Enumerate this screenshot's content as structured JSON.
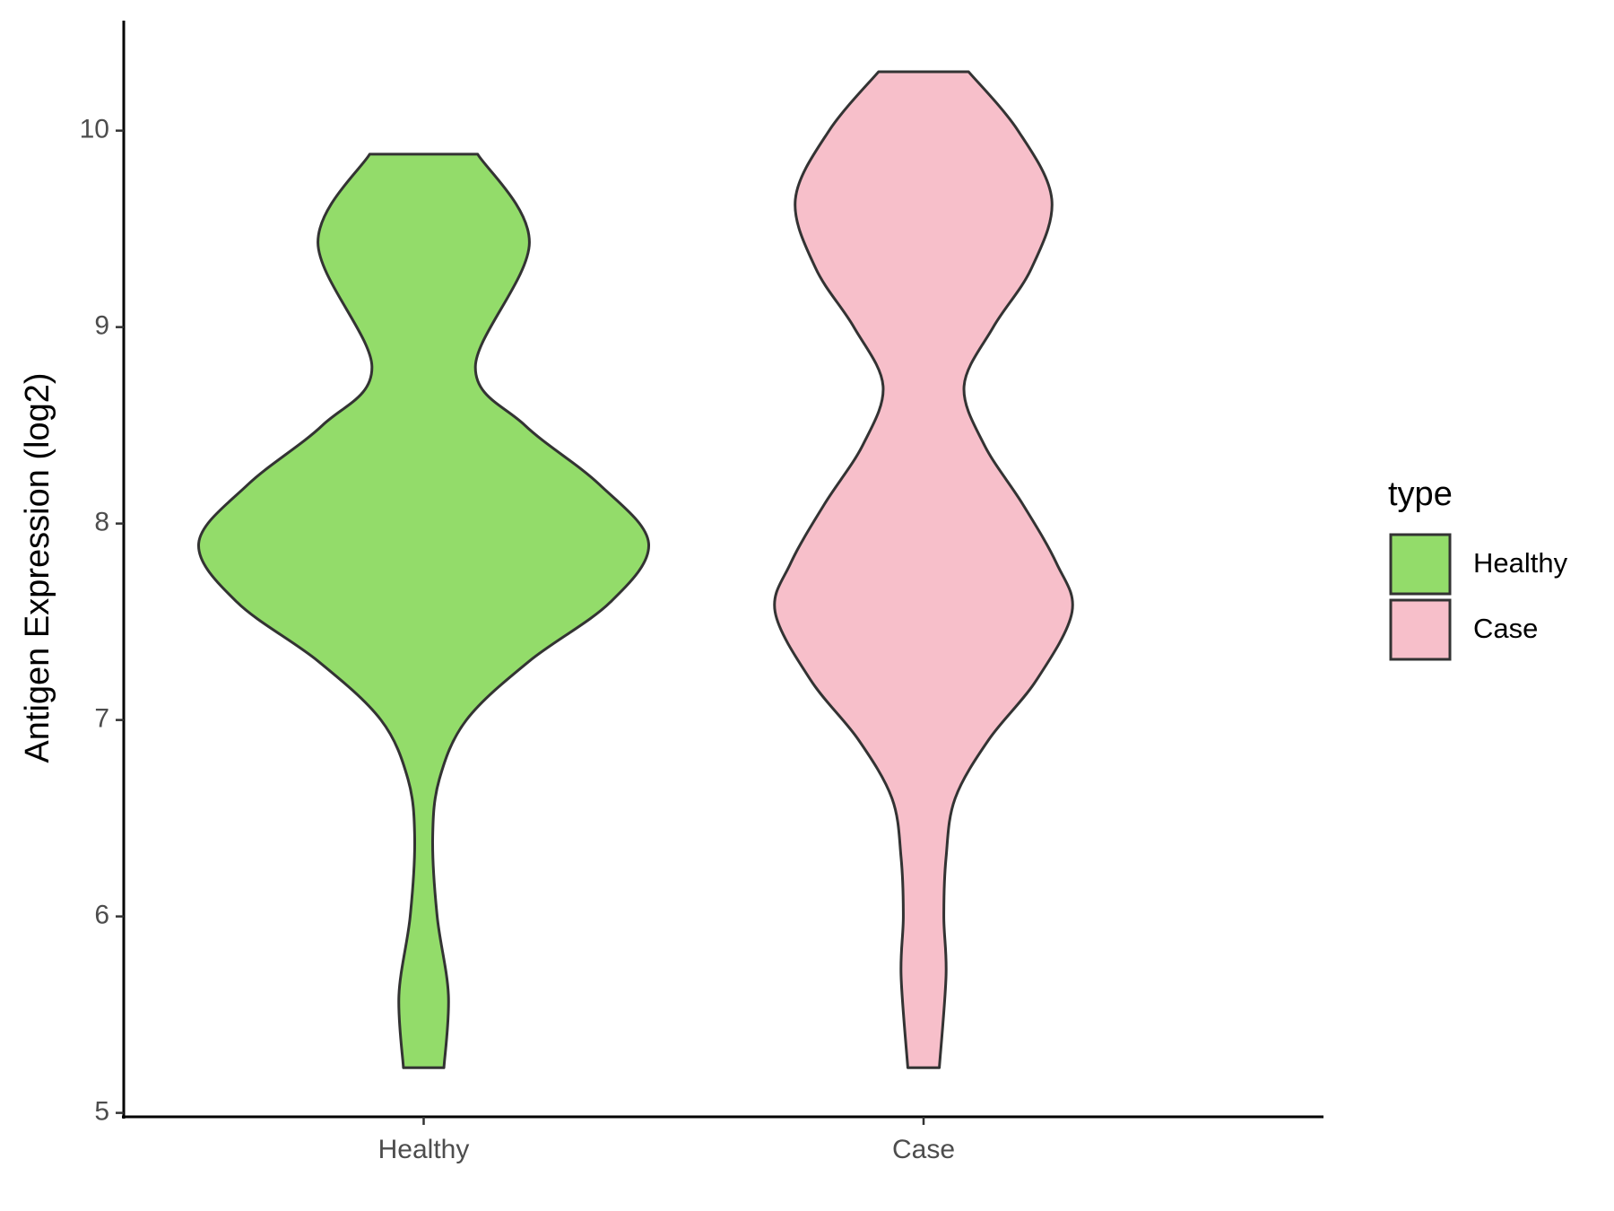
{
  "chart_data": {
    "type": "violin",
    "y_label": "Antigen Expression (log2)",
    "categories": [
      "Healthy",
      "Case"
    ],
    "ylim": [
      4.98,
      10.56
    ],
    "yticks": [
      5,
      6,
      7,
      8,
      9,
      10
    ],
    "legend_title": "type",
    "legend_position": "right",
    "series": [
      {
        "name": "Healthy",
        "color": "#93dc6a",
        "y": [
          5.23,
          5.6,
          6.0,
          6.4,
          6.7,
          7.0,
          7.3,
          7.6,
          7.9,
          8.2,
          8.5,
          8.8,
          9.43,
          9.88
        ],
        "density": [
          0.09,
          0.11,
          0.06,
          0.04,
          0.07,
          0.19,
          0.47,
          0.83,
          1.0,
          0.78,
          0.45,
          0.23,
          0.47,
          0.24
        ]
      },
      {
        "name": "Case",
        "color": "#f7bfca",
        "y": [
          5.23,
          5.7,
          6.0,
          6.3,
          6.6,
          6.9,
          7.2,
          7.55,
          7.8,
          8.1,
          8.4,
          8.7,
          9.0,
          9.3,
          9.65,
          10.0,
          10.3
        ],
        "density": [
          0.07,
          0.1,
          0.09,
          0.1,
          0.14,
          0.29,
          0.5,
          0.66,
          0.59,
          0.44,
          0.27,
          0.18,
          0.31,
          0.48,
          0.57,
          0.42,
          0.2
        ]
      }
    ]
  }
}
